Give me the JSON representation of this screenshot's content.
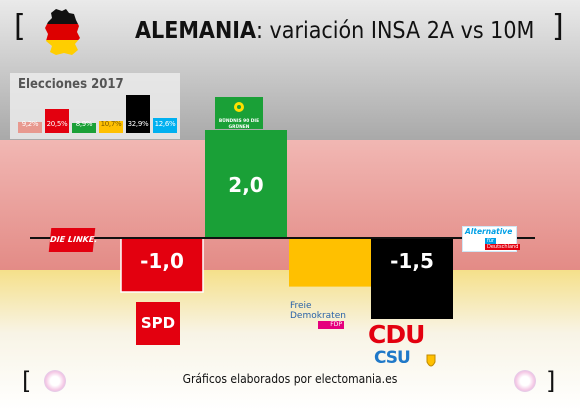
{
  "title": {
    "bold": "ALEMANIA",
    "rest": ": variación INSA 2A vs 10M"
  },
  "footer": "Gráficos elaborados por electomania.es",
  "inset": {
    "title": "Elecciones 2017",
    "values": [
      "9,2%",
      "20,5%",
      "8,9%",
      "10,7%",
      "32,9%",
      "12,6%"
    ],
    "heights": [
      9.2,
      20.5,
      8.9,
      10.7,
      32.9,
      12.6
    ],
    "colors": [
      "#e8998f",
      "#e3000f",
      "#1aa037",
      "#ffc000",
      "#000000",
      "#00b0f0"
    ]
  },
  "logos": {
    "linke": "DIE LINKE.",
    "spd": "SPD",
    "gruene": "BÜNDNIS 90 DIE GRÜNEN",
    "fdp_1": "Freie",
    "fdp_2": "Demokraten",
    "fdp_3": "FDP",
    "cdu": "CDU",
    "csu": "CSU",
    "afd_1": "Alternative",
    "afd_2": "für",
    "afd_3": "Deutschland"
  },
  "chart_data": {
    "type": "bar",
    "categories": [
      "DIE LINKE",
      "SPD",
      "GRÜNE",
      "FDP",
      "CDU/CSU",
      "AfD"
    ],
    "values": [
      0,
      -1.0,
      2.0,
      -0.9,
      -1.5,
      0
    ],
    "labels": [
      "",
      "-1,0",
      "2,0",
      "",
      "-1,5",
      ""
    ],
    "colors": [
      "#e3000f",
      "#e3000f",
      "#1aa037",
      "#ffc000",
      "#000000",
      "#00b0f0"
    ]
  }
}
